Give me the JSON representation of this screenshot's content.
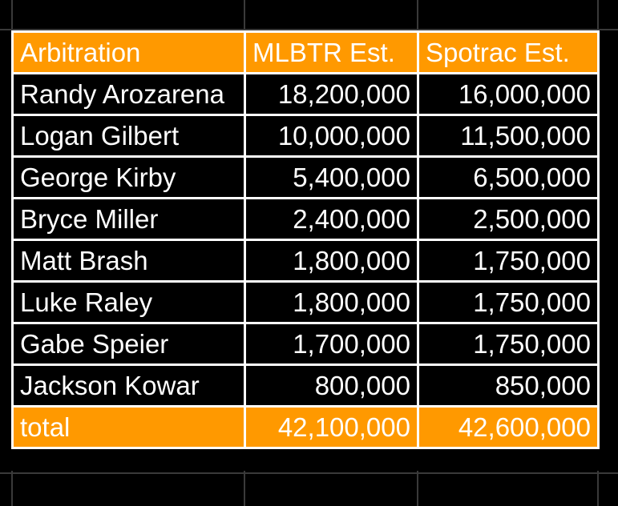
{
  "colors": {
    "accent": "#ff9900",
    "background": "#000000",
    "text": "#ffffff",
    "border": "#ffffff"
  },
  "table": {
    "headers": [
      "Arbitration",
      "MLBTR Est.",
      "Spotrac Est."
    ],
    "rows": [
      [
        "Randy Arozarena",
        "18,200,000",
        "16,000,000"
      ],
      [
        "Logan Gilbert",
        "10,000,000",
        "11,500,000"
      ],
      [
        "George Kirby",
        "5,400,000",
        "6,500,000"
      ],
      [
        "Bryce Miller",
        "2,400,000",
        "2,500,000"
      ],
      [
        "Matt Brash",
        "1,800,000",
        "1,750,000"
      ],
      [
        "Luke Raley",
        "1,800,000",
        "1,750,000"
      ],
      [
        "Gabe Speier",
        "1,700,000",
        "1,750,000"
      ],
      [
        "Jackson Kowar",
        "800,000",
        "850,000"
      ]
    ],
    "total": [
      "total",
      "42,100,000",
      "42,600,000"
    ]
  }
}
